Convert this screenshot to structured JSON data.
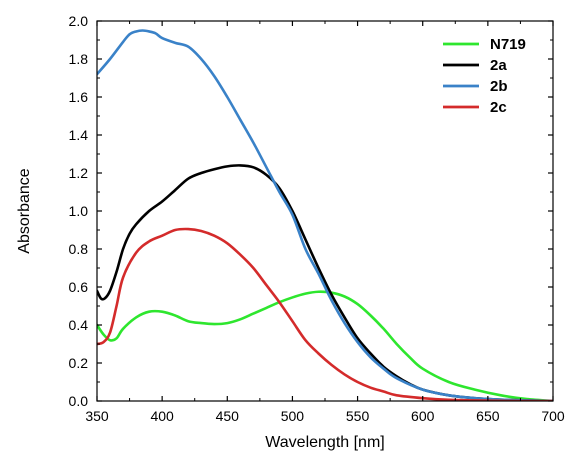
{
  "chart_data": {
    "type": "line",
    "title": "",
    "xlabel": "Wavelength [nm]",
    "ylabel": "Absorbance",
    "xlim": [
      350,
      700
    ],
    "ylim": [
      0.0,
      2.0
    ],
    "xticks": [
      "350",
      "400",
      "450",
      "500",
      "550",
      "600",
      "650",
      "700"
    ],
    "yticks": [
      "0.0",
      "0.2",
      "0.4",
      "0.6",
      "0.8",
      "1.0",
      "1.2",
      "1.4",
      "1.6",
      "1.8",
      "2.0"
    ],
    "legend_position": "top-right",
    "grid": false,
    "series": [
      {
        "name": "N719",
        "color": "#2ee62e",
        "x": [
          350,
          355,
          360,
          365,
          370,
          380,
          390,
          400,
          410,
          420,
          430,
          440,
          450,
          460,
          470,
          480,
          490,
          500,
          510,
          520,
          530,
          540,
          550,
          560,
          570,
          580,
          590,
          600,
          620,
          640,
          660,
          680,
          700
        ],
        "y": [
          0.4,
          0.35,
          0.32,
          0.33,
          0.38,
          0.44,
          0.47,
          0.47,
          0.45,
          0.42,
          0.41,
          0.405,
          0.41,
          0.43,
          0.46,
          0.49,
          0.52,
          0.545,
          0.565,
          0.575,
          0.57,
          0.55,
          0.51,
          0.45,
          0.38,
          0.3,
          0.23,
          0.17,
          0.1,
          0.06,
          0.03,
          0.01,
          0.0
        ]
      },
      {
        "name": "2a",
        "color": "#000000",
        "x": [
          350,
          353,
          356,
          360,
          365,
          370,
          375,
          380,
          390,
          400,
          410,
          420,
          430,
          440,
          450,
          460,
          470,
          480,
          490,
          500,
          510,
          520,
          530,
          540,
          550,
          560,
          570,
          580,
          590,
          600,
          620,
          640,
          660,
          680,
          700
        ],
        "y": [
          0.58,
          0.54,
          0.54,
          0.58,
          0.68,
          0.8,
          0.88,
          0.93,
          1.0,
          1.05,
          1.11,
          1.17,
          1.2,
          1.22,
          1.235,
          1.24,
          1.23,
          1.19,
          1.12,
          1.0,
          0.85,
          0.7,
          0.56,
          0.44,
          0.33,
          0.25,
          0.18,
          0.13,
          0.09,
          0.06,
          0.03,
          0.015,
          0.007,
          0.003,
          0.0
        ]
      },
      {
        "name": "2b",
        "color": "#3a82c8",
        "x": [
          350,
          360,
          370,
          375,
          380,
          385,
          390,
          395,
          400,
          410,
          420,
          430,
          440,
          450,
          460,
          470,
          480,
          490,
          500,
          510,
          520,
          530,
          540,
          550,
          560,
          570,
          580,
          600,
          620,
          640,
          660,
          680,
          700
        ],
        "y": [
          1.72,
          1.8,
          1.89,
          1.93,
          1.945,
          1.95,
          1.945,
          1.935,
          1.91,
          1.885,
          1.865,
          1.8,
          1.71,
          1.6,
          1.48,
          1.36,
          1.23,
          1.1,
          0.98,
          0.8,
          0.67,
          0.53,
          0.41,
          0.31,
          0.23,
          0.17,
          0.12,
          0.06,
          0.03,
          0.015,
          0.007,
          0.003,
          0.0
        ]
      },
      {
        "name": "2c",
        "color": "#d42b2b",
        "x": [
          350,
          355,
          360,
          365,
          370,
          380,
          390,
          400,
          410,
          420,
          430,
          440,
          450,
          460,
          470,
          480,
          490,
          500,
          510,
          520,
          530,
          540,
          550,
          560,
          570,
          580,
          600,
          620,
          640,
          660,
          680,
          700
        ],
        "y": [
          0.3,
          0.31,
          0.36,
          0.5,
          0.65,
          0.78,
          0.84,
          0.87,
          0.9,
          0.905,
          0.895,
          0.87,
          0.83,
          0.77,
          0.7,
          0.61,
          0.52,
          0.42,
          0.32,
          0.25,
          0.19,
          0.14,
          0.1,
          0.07,
          0.05,
          0.03,
          0.015,
          0.006,
          0.003,
          0.001,
          0.0,
          0.0
        ]
      }
    ]
  }
}
